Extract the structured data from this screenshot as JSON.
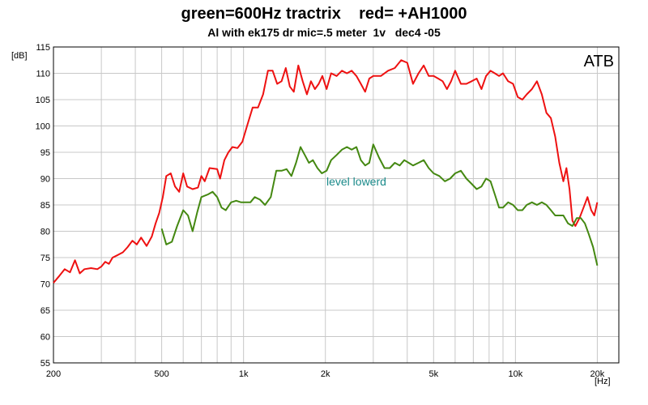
{
  "chart_data": {
    "type": "line",
    "title": "green=600Hz tractrix    red= +AH1000",
    "subtitle": "Al with ek175 dr mic=.5 meter  1v   dec4 -05",
    "xlabel": "[Hz]",
    "ylabel": "[dB]",
    "xscale": "log",
    "xlim": [
      200,
      24000
    ],
    "ylim": [
      55,
      115
    ],
    "grid": true,
    "x_tick_labels": [
      "200",
      "500",
      "1k",
      "2k",
      "5k",
      "10k",
      "20k"
    ],
    "x_tick_values": [
      200,
      500,
      1000,
      2000,
      5000,
      10000,
      20000
    ],
    "y_tick_values": [
      55,
      60,
      65,
      70,
      75,
      80,
      85,
      90,
      95,
      100,
      105,
      110,
      115
    ],
    "brand_label": "ATB",
    "annotations": [
      {
        "text": "level lowerd",
        "x": 2600,
        "y": 89.5
      }
    ],
    "series": [
      {
        "color": "#ee1111",
        "points": [
          [
            200,
            70.2
          ],
          [
            210,
            71.5
          ],
          [
            220,
            72.8
          ],
          [
            230,
            72.2
          ],
          [
            240,
            74.5
          ],
          [
            250,
            72.0
          ],
          [
            260,
            72.8
          ],
          [
            275,
            73.0
          ],
          [
            290,
            72.8
          ],
          [
            300,
            73.3
          ],
          [
            310,
            74.2
          ],
          [
            320,
            73.8
          ],
          [
            330,
            75.0
          ],
          [
            345,
            75.5
          ],
          [
            360,
            76.0
          ],
          [
            375,
            77.0
          ],
          [
            390,
            78.2
          ],
          [
            405,
            77.5
          ],
          [
            420,
            78.8
          ],
          [
            440,
            77.2
          ],
          [
            460,
            79.0
          ],
          [
            475,
            81.5
          ],
          [
            490,
            83.5
          ],
          [
            505,
            86.5
          ],
          [
            520,
            90.5
          ],
          [
            540,
            91.0
          ],
          [
            560,
            88.5
          ],
          [
            580,
            87.5
          ],
          [
            600,
            91.0
          ],
          [
            620,
            88.5
          ],
          [
            650,
            88.0
          ],
          [
            680,
            88.3
          ],
          [
            700,
            90.5
          ],
          [
            720,
            89.5
          ],
          [
            750,
            92.0
          ],
          [
            800,
            91.8
          ],
          [
            820,
            90.0
          ],
          [
            850,
            93.5
          ],
          [
            880,
            95.0
          ],
          [
            910,
            96.0
          ],
          [
            950,
            95.8
          ],
          [
            990,
            97.0
          ],
          [
            1030,
            100.0
          ],
          [
            1080,
            103.5
          ],
          [
            1130,
            103.5
          ],
          [
            1180,
            106.0
          ],
          [
            1230,
            110.5
          ],
          [
            1280,
            110.5
          ],
          [
            1330,
            108.0
          ],
          [
            1380,
            108.5
          ],
          [
            1430,
            111.0
          ],
          [
            1480,
            107.5
          ],
          [
            1530,
            106.5
          ],
          [
            1590,
            111.5
          ],
          [
            1650,
            108.5
          ],
          [
            1710,
            106.0
          ],
          [
            1770,
            108.5
          ],
          [
            1830,
            107.0
          ],
          [
            1890,
            108.0
          ],
          [
            1950,
            109.5
          ],
          [
            2020,
            107.0
          ],
          [
            2100,
            110.0
          ],
          [
            2200,
            109.5
          ],
          [
            2300,
            110.5
          ],
          [
            2400,
            110.0
          ],
          [
            2500,
            110.5
          ],
          [
            2600,
            109.5
          ],
          [
            2700,
            108.0
          ],
          [
            2800,
            106.5
          ],
          [
            2900,
            109.0
          ],
          [
            3000,
            109.5
          ],
          [
            3200,
            109.5
          ],
          [
            3400,
            110.5
          ],
          [
            3600,
            111.0
          ],
          [
            3800,
            112.5
          ],
          [
            4000,
            112.0
          ],
          [
            4200,
            108.0
          ],
          [
            4400,
            110.0
          ],
          [
            4600,
            111.5
          ],
          [
            4800,
            109.5
          ],
          [
            5000,
            109.5
          ],
          [
            5200,
            109.0
          ],
          [
            5400,
            108.5
          ],
          [
            5600,
            107.0
          ],
          [
            5800,
            108.5
          ],
          [
            6000,
            110.5
          ],
          [
            6300,
            108.0
          ],
          [
            6600,
            108.0
          ],
          [
            6900,
            108.5
          ],
          [
            7200,
            109.0
          ],
          [
            7500,
            107.0
          ],
          [
            7800,
            109.5
          ],
          [
            8100,
            110.5
          ],
          [
            8400,
            110.0
          ],
          [
            8700,
            109.5
          ],
          [
            9000,
            110.0
          ],
          [
            9400,
            108.5
          ],
          [
            9800,
            108.0
          ],
          [
            10200,
            105.5
          ],
          [
            10600,
            105.0
          ],
          [
            11000,
            106.0
          ],
          [
            11500,
            107.0
          ],
          [
            12000,
            108.5
          ],
          [
            12500,
            106.0
          ],
          [
            13000,
            102.5
          ],
          [
            13500,
            101.5
          ],
          [
            14000,
            98.0
          ],
          [
            14500,
            93.0
          ],
          [
            15000,
            89.5
          ],
          [
            15400,
            92.0
          ],
          [
            15800,
            88.0
          ],
          [
            16200,
            82.0
          ],
          [
            16600,
            81.0
          ],
          [
            17200,
            82.5
          ],
          [
            17800,
            84.5
          ],
          [
            18400,
            86.5
          ],
          [
            19000,
            84.0
          ],
          [
            19500,
            83.0
          ],
          [
            20000,
            85.5
          ]
        ]
      },
      {
        "color": "#448811",
        "points": [
          [
            500,
            80.5
          ],
          [
            520,
            77.5
          ],
          [
            545,
            78.0
          ],
          [
            570,
            81.0
          ],
          [
            600,
            84.0
          ],
          [
            625,
            83.0
          ],
          [
            650,
            80.0
          ],
          [
            675,
            83.5
          ],
          [
            700,
            86.5
          ],
          [
            740,
            87.0
          ],
          [
            770,
            87.5
          ],
          [
            800,
            86.5
          ],
          [
            830,
            84.5
          ],
          [
            860,
            84.0
          ],
          [
            900,
            85.5
          ],
          [
            940,
            85.8
          ],
          [
            980,
            85.5
          ],
          [
            1020,
            85.5
          ],
          [
            1060,
            85.5
          ],
          [
            1100,
            86.5
          ],
          [
            1150,
            86.0
          ],
          [
            1200,
            85.0
          ],
          [
            1260,
            86.5
          ],
          [
            1320,
            91.5
          ],
          [
            1380,
            91.5
          ],
          [
            1440,
            91.8
          ],
          [
            1500,
            90.5
          ],
          [
            1560,
            93.0
          ],
          [
            1620,
            96.0
          ],
          [
            1680,
            94.5
          ],
          [
            1740,
            93.0
          ],
          [
            1800,
            93.5
          ],
          [
            1870,
            92.0
          ],
          [
            1940,
            91.0
          ],
          [
            2020,
            91.5
          ],
          [
            2100,
            93.5
          ],
          [
            2200,
            94.5
          ],
          [
            2300,
            95.5
          ],
          [
            2400,
            96.0
          ],
          [
            2500,
            95.5
          ],
          [
            2600,
            96.0
          ],
          [
            2700,
            93.5
          ],
          [
            2800,
            92.5
          ],
          [
            2900,
            93.0
          ],
          [
            3000,
            96.5
          ],
          [
            3150,
            94.0
          ],
          [
            3300,
            92.0
          ],
          [
            3450,
            92.0
          ],
          [
            3600,
            93.0
          ],
          [
            3750,
            92.5
          ],
          [
            3900,
            93.5
          ],
          [
            4050,
            93.0
          ],
          [
            4200,
            92.5
          ],
          [
            4400,
            93.0
          ],
          [
            4600,
            93.5
          ],
          [
            4800,
            92.0
          ],
          [
            5000,
            91.0
          ],
          [
            5250,
            90.5
          ],
          [
            5500,
            89.5
          ],
          [
            5750,
            90.0
          ],
          [
            6000,
            91.0
          ],
          [
            6300,
            91.5
          ],
          [
            6600,
            90.0
          ],
          [
            6900,
            89.0
          ],
          [
            7200,
            88.0
          ],
          [
            7500,
            88.5
          ],
          [
            7800,
            90.0
          ],
          [
            8100,
            89.5
          ],
          [
            8400,
            87.0
          ],
          [
            8700,
            84.5
          ],
          [
            9000,
            84.5
          ],
          [
            9400,
            85.5
          ],
          [
            9800,
            85.0
          ],
          [
            10200,
            84.0
          ],
          [
            10600,
            84.0
          ],
          [
            11000,
            85.0
          ],
          [
            11500,
            85.5
          ],
          [
            12000,
            85.0
          ],
          [
            12500,
            85.5
          ],
          [
            13000,
            85.0
          ],
          [
            13500,
            84.0
          ],
          [
            14000,
            83.0
          ],
          [
            14500,
            83.0
          ],
          [
            15000,
            83.0
          ],
          [
            15600,
            81.5
          ],
          [
            16200,
            81.0
          ],
          [
            16800,
            82.5
          ],
          [
            17400,
            82.5
          ],
          [
            18000,
            81.5
          ],
          [
            18600,
            79.5
          ],
          [
            19300,
            77.0
          ],
          [
            20000,
            73.5
          ]
        ]
      }
    ]
  }
}
